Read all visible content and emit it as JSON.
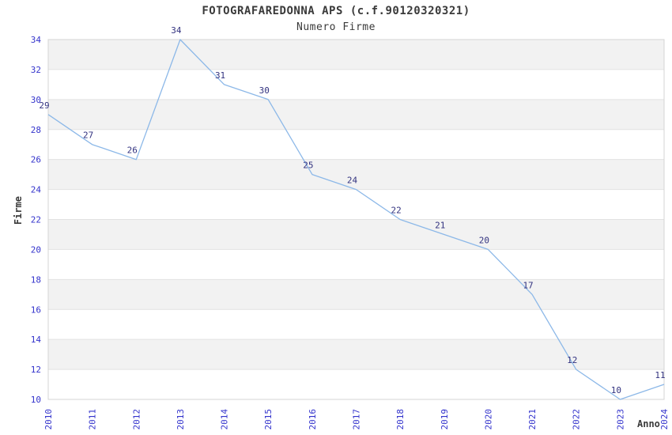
{
  "chart_data": {
    "type": "line",
    "title": "FOTOGRAFAREDONNA APS (c.f.90120320321)",
    "subtitle": "Numero Firme",
    "xlabel": "Anno",
    "ylabel": "Firme",
    "x": [
      "2010",
      "2011",
      "2012",
      "2013",
      "2014",
      "2015",
      "2016",
      "2017",
      "2018",
      "2019",
      "2020",
      "2021",
      "2022",
      "2023",
      "2024"
    ],
    "series": [
      {
        "name": "Numero Firme",
        "values": [
          29,
          27,
          26,
          34,
          31,
          30,
          25,
          24,
          22,
          21,
          20,
          17,
          12,
          10,
          11
        ]
      }
    ],
    "point_labels": [
      "29",
      "27",
      "26",
      "34",
      "31",
      "30",
      "25",
      "24",
      "22",
      "21",
      "20",
      "17",
      "12",
      "10",
      "11"
    ],
    "ylim": [
      10,
      34
    ],
    "ytick_step": 2,
    "yticks": [
      "10",
      "12",
      "14",
      "16",
      "18",
      "20",
      "22",
      "24",
      "26",
      "28",
      "30",
      "32",
      "34"
    ],
    "legend": "none",
    "grid": "horizontal",
    "band_fill": "alternating",
    "colors": {
      "line": "#8cb8e8",
      "tick_label": "#3333cc",
      "point_label": "#333380",
      "band_gray": "#f2f2f2",
      "band_white": "#ffffff",
      "gridline": "#e2e2e2",
      "border": "#d4d4d4",
      "text": "#3a3a3a",
      "background": "#ffffff"
    }
  }
}
